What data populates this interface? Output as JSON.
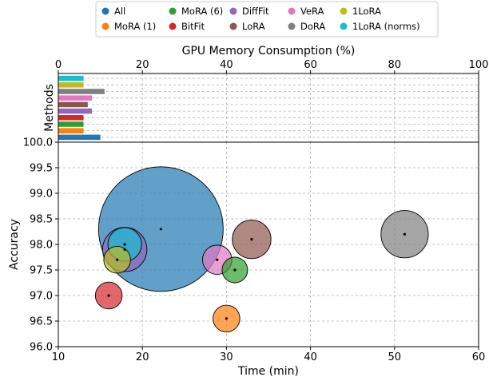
{
  "chart_data": {
    "legend": {
      "placement": "top",
      "entries": [
        {
          "name": "All",
          "color": "#1f77b4"
        },
        {
          "name": "MoRA (1)",
          "color": "#ff7f0e"
        },
        {
          "name": "MoRA (6)",
          "color": "#2ca02c"
        },
        {
          "name": "BitFit",
          "color": "#d62728"
        },
        {
          "name": "DiffFit",
          "color": "#9467bd"
        },
        {
          "name": "LoRA",
          "color": "#8c564b"
        },
        {
          "name": "VeRA",
          "color": "#e377c2"
        },
        {
          "name": "DoRA",
          "color": "#7f7f7f"
        },
        {
          "name": "1LoRA",
          "color": "#bcbd22"
        },
        {
          "name": "1LoRA (norms)",
          "color": "#17becf"
        }
      ]
    },
    "charts": [
      {
        "type": "bar",
        "orientation": "horizontal",
        "xlabel": "GPU Memory Consumption (%)",
        "ylabel": "Methods",
        "xlim": [
          0,
          100
        ],
        "xticks": [
          "0",
          "20",
          "40",
          "60",
          "80",
          "100"
        ],
        "grid": true,
        "categories": [
          "All",
          "MoRA (1)",
          "MoRA (6)",
          "BitFit",
          "DiffFit",
          "LoRA",
          "VeRA",
          "DoRA",
          "1LoRA",
          "1LoRA (norms)"
        ],
        "values": [
          10,
          6,
          6,
          6,
          8,
          7,
          8,
          11,
          6,
          6
        ]
      },
      {
        "type": "scatter",
        "xlabel": "Time (min)",
        "ylabel": "Accuracy",
        "xlim": [
          10,
          60
        ],
        "ylim": [
          96.0,
          100.0
        ],
        "xticks": [
          "10",
          "20",
          "30",
          "40",
          "50",
          "60"
        ],
        "yticks": [
          "96.0",
          "96.5",
          "97.0",
          "97.5",
          "98.0",
          "98.5",
          "99.0",
          "99.5",
          "100.0"
        ],
        "grid": true,
        "points": [
          {
            "name": "All",
            "x": 22.2,
            "y": 98.3,
            "size": 1.0
          },
          {
            "name": "DoRA",
            "x": 51.2,
            "y": 98.2,
            "size": 0.38
          },
          {
            "name": "LoRA",
            "x": 33.0,
            "y": 98.1,
            "size": 0.31
          },
          {
            "name": "DiffFit",
            "x": 17.9,
            "y": 97.9,
            "size": 0.355
          },
          {
            "name": "1LoRA (norms)",
            "x": 17.9,
            "y": 98.0,
            "size": 0.27
          },
          {
            "name": "VeRA",
            "x": 28.9,
            "y": 97.7,
            "size": 0.235
          },
          {
            "name": "MoRA (6)",
            "x": 31.0,
            "y": 97.5,
            "size": 0.205
          },
          {
            "name": "1LoRA",
            "x": 17.0,
            "y": 97.7,
            "size": 0.215
          },
          {
            "name": "BitFit",
            "x": 16.0,
            "y": 97.0,
            "size": 0.215
          },
          {
            "name": "MoRA (1)",
            "x": 30.0,
            "y": 96.55,
            "size": 0.215
          }
        ]
      }
    ]
  }
}
